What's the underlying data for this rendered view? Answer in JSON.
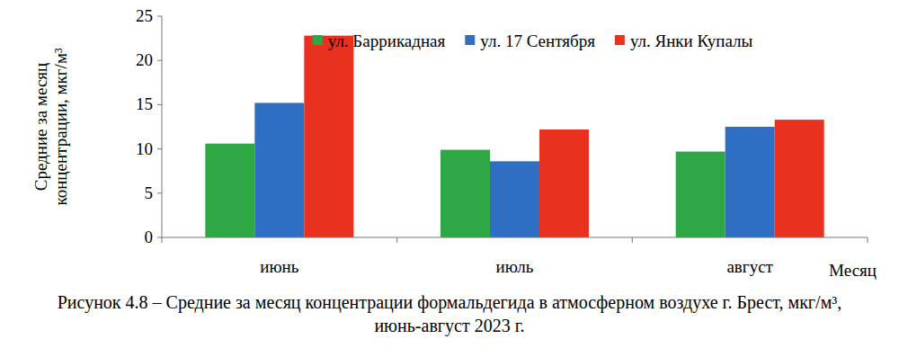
{
  "chart_data": {
    "type": "bar",
    "title": "Рисунок 4.8 – Средние за месяц концентрации формальдегида в атмосферном воздухе г. Брест, мкг/м³, июнь-август 2023 г.",
    "x_label": "Месяц",
    "y_label": "Средние за месяц концентрации, мкг/м³",
    "categories": [
      "июнь",
      "июль",
      "август"
    ],
    "series": [
      {
        "name": "ул. Баррикадная",
        "color": "#2ea844",
        "values": [
          10.6,
          9.9,
          9.7
        ]
      },
      {
        "name": "ул. 17 Сентября",
        "color": "#2e6fc4",
        "values": [
          15.2,
          8.6,
          12.5
        ]
      },
      {
        "name": "ул. Янки Купалы",
        "color": "#e8311f",
        "values": [
          22.8,
          12.2,
          13.3
        ]
      }
    ],
    "ylim": [
      0,
      25
    ],
    "yticks": [
      0,
      5,
      10,
      15,
      20,
      25
    ],
    "grid": false,
    "legend": "top"
  }
}
